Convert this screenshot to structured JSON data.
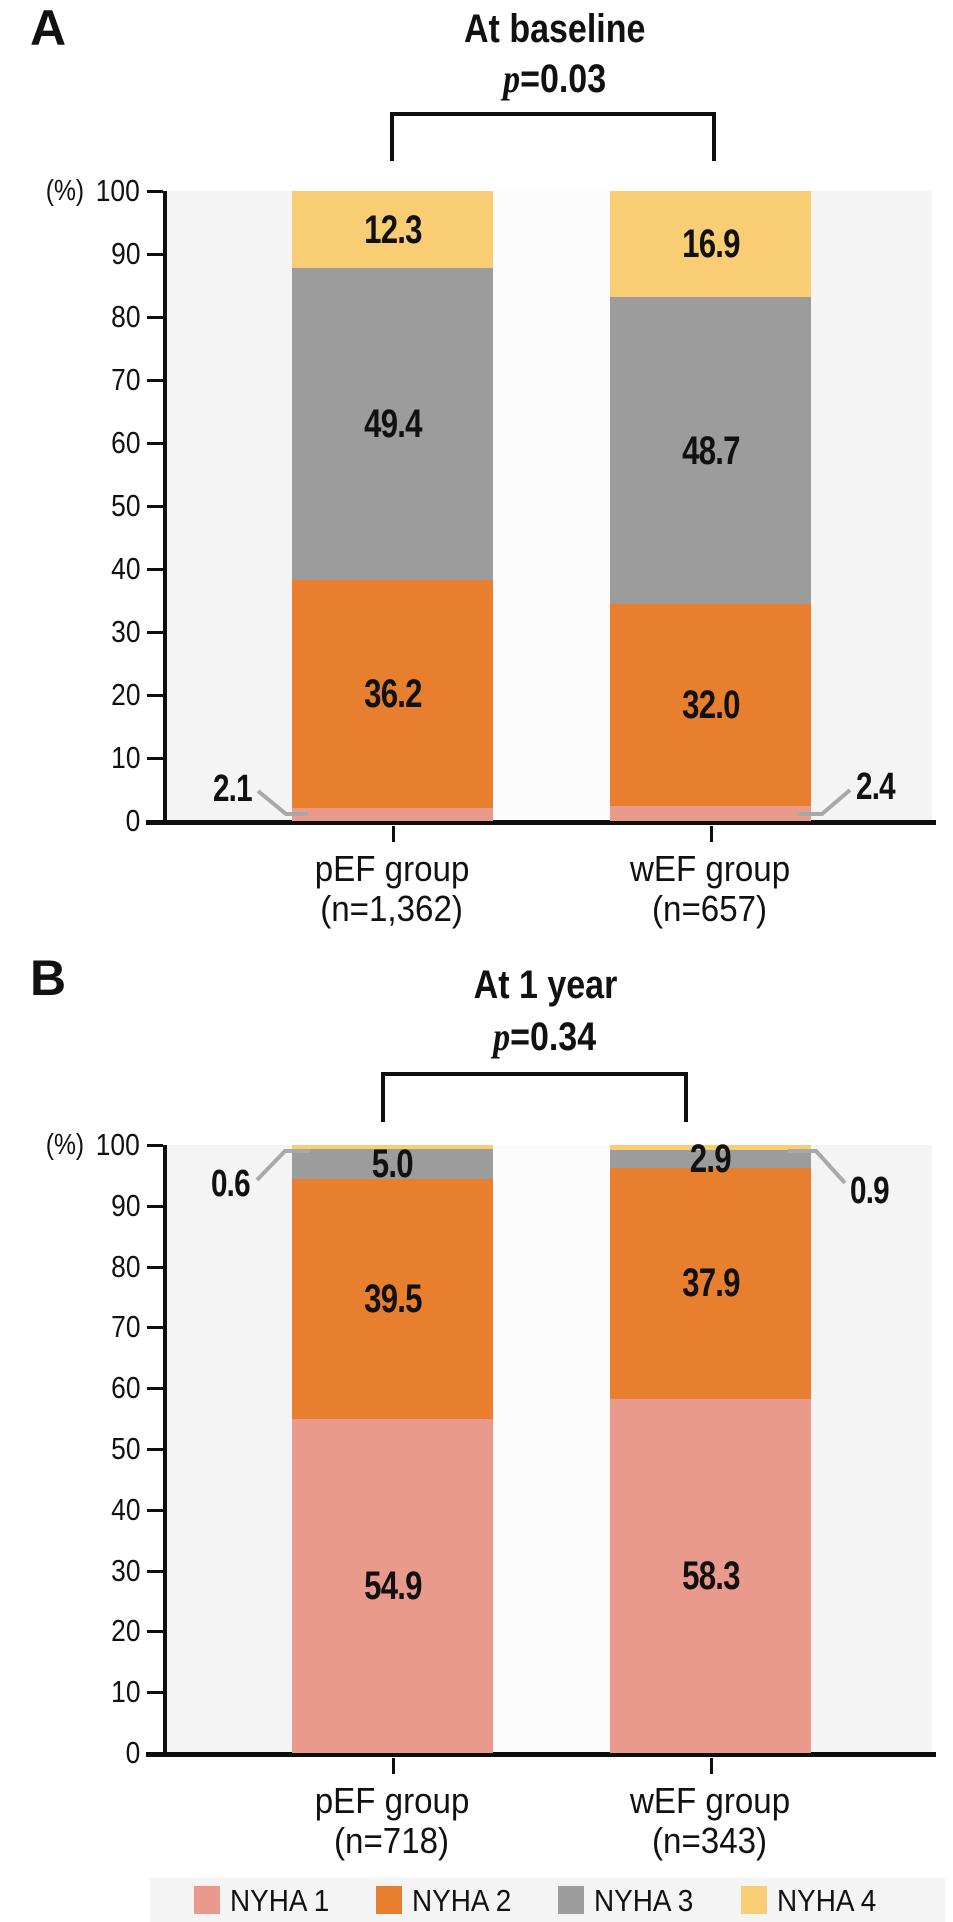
{
  "panels": [
    {
      "panel_label": "A",
      "title": "At baseline",
      "p_italic": "p",
      "p_rest": "=0.03",
      "y_unit": "(%)",
      "x_groups": [
        {
          "line1": "pEF group",
          "line2": "(n=1,362)"
        },
        {
          "line1": "wEF group",
          "line2": "(n=657)"
        }
      ]
    },
    {
      "panel_label": "B",
      "title": "At 1 year",
      "p_italic": "p",
      "p_rest": "=0.34",
      "y_unit": "(%)",
      "x_groups": [
        {
          "line1": "pEF group",
          "line2": "(n=718)"
        },
        {
          "line1": "wEF group",
          "line2": "(n=343)"
        }
      ]
    }
  ],
  "chart_data": [
    {
      "type": "bar",
      "stacked": true,
      "title": "At baseline",
      "annotation": "p=0.03",
      "categories": [
        "pEF group (n=1,362)",
        "wEF group (n=657)"
      ],
      "series": [
        {
          "name": "NYHA 1",
          "color": "#E99A8C",
          "values": [
            2.1,
            2.4
          ],
          "labels": [
            "2.1",
            "2.4"
          ]
        },
        {
          "name": "NYHA 2",
          "color": "#E87F2F",
          "values": [
            36.2,
            32.0
          ],
          "labels": [
            "36.2",
            "32.0"
          ]
        },
        {
          "name": "NYHA 3",
          "color": "#9C9C9C",
          "values": [
            49.4,
            48.7
          ],
          "labels": [
            "49.4",
            "48.7"
          ]
        },
        {
          "name": "NYHA 4",
          "color": "#F8CD74",
          "values": [
            12.3,
            16.9
          ],
          "labels": [
            "12.3",
            "16.9"
          ]
        }
      ],
      "ylabel": "(%)",
      "ylim": [
        0,
        100
      ],
      "yticks": [
        0,
        10,
        20,
        30,
        40,
        50,
        60,
        70,
        80,
        90,
        100
      ],
      "legend_position": "bottom",
      "grid": false
    },
    {
      "type": "bar",
      "stacked": true,
      "title": "At 1 year",
      "annotation": "p=0.34",
      "categories": [
        "pEF group (n=718)",
        "wEF group (n=343)"
      ],
      "series": [
        {
          "name": "NYHA 1",
          "color": "#E99A8C",
          "values": [
            54.9,
            58.3
          ],
          "labels": [
            "54.9",
            "58.3"
          ]
        },
        {
          "name": "NYHA 2",
          "color": "#E87F2F",
          "values": [
            39.5,
            37.9
          ],
          "labels": [
            "39.5",
            "37.9"
          ]
        },
        {
          "name": "NYHA 3",
          "color": "#9C9C9C",
          "values": [
            5.0,
            2.9
          ],
          "labels": [
            "5.0",
            "2.9"
          ]
        },
        {
          "name": "NYHA 4",
          "color": "#F8CD74",
          "values": [
            0.6,
            0.9
          ],
          "labels": [
            "0.6",
            "0.9"
          ]
        }
      ],
      "ylabel": "(%)",
      "ylim": [
        0,
        100
      ],
      "yticks": [
        0,
        10,
        20,
        30,
        40,
        50,
        60,
        70,
        80,
        90,
        100
      ],
      "legend_position": "bottom",
      "grid": false
    }
  ],
  "legend": {
    "items": [
      {
        "label": "NYHA 1",
        "color": "#E99A8C"
      },
      {
        "label": "NYHA 2",
        "color": "#E87F2F"
      },
      {
        "label": "NYHA 3",
        "color": "#9C9C9C"
      },
      {
        "label": "NYHA 4",
        "color": "#F8CD74"
      }
    ]
  },
  "colors": {
    "plot_bg": "#F4F4F4",
    "gap_band": "#FCFCFC",
    "axis": "#0E0E0E",
    "leader_line": "#A8A8A8",
    "text": "#111111"
  }
}
